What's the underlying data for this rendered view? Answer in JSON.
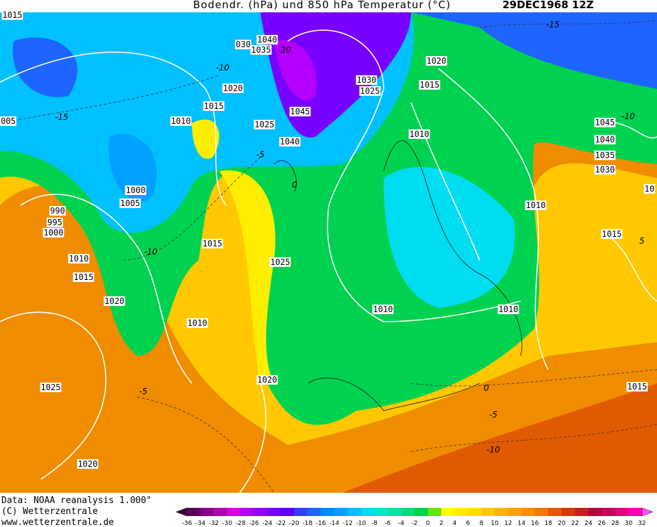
{
  "header": {
    "title": "Bodendr. (hPa) und 850 hPa Temperatur (°C)",
    "date": "29DEC1968 12Z"
  },
  "footer": {
    "source": "Data: NOAA reanalysis 1.000°",
    "copyright": "(C) Wetterzentrale",
    "url": "www.wetterzentrale.de"
  },
  "map": {
    "isobar_labels": [
      "1015",
      "030",
      "1040",
      "1035",
      "1020",
      "1015",
      "1010",
      "1025",
      "1045",
      "1040",
      "1030",
      "1025",
      "1020",
      "1015",
      "1010",
      "005",
      "1000",
      "1005",
      "990",
      "995",
      "1000",
      "1010",
      "1015",
      "1020",
      "1015",
      "1025",
      "1010",
      "1020",
      "1025",
      "1020",
      "1010",
      "1010",
      "1010",
      "1015",
      "1045",
      "1040",
      "1035",
      "1030",
      "1015",
      "10"
    ],
    "isotherm_labels": [
      "-15",
      "-10",
      "-15",
      "-20",
      "-10",
      "-5",
      "0",
      "-5",
      "0",
      "-5",
      "-10",
      "-10",
      "5"
    ]
  },
  "colorbar": {
    "labels": [
      "-36",
      "-34",
      "-32",
      "-30",
      "-28",
      "-26",
      "-24",
      "-22",
      "-20",
      "-18",
      "-16",
      "-14",
      "-12",
      "-10",
      "-8",
      "-6",
      "-4",
      "-2",
      "0",
      "2",
      "4",
      "6",
      "8",
      "10",
      "12",
      "14",
      "16",
      "18",
      "20",
      "22",
      "24",
      "26",
      "28",
      "30",
      "32"
    ],
    "colors": [
      "#3a003a",
      "#5a005a",
      "#8a008a",
      "#b000b0",
      "#e000e0",
      "#b400ff",
      "#9600ff",
      "#7800ff",
      "#5a00ff",
      "#3c3cff",
      "#1e64ff",
      "#0088ff",
      "#00a0ff",
      "#00c0ff",
      "#00dcf0",
      "#00e6c8",
      "#00e6a0",
      "#00dc78",
      "#00d250",
      "#64e600",
      "#ffff00",
      "#ffee00",
      "#ffdc00",
      "#ffc800",
      "#ffb400",
      "#ffa000",
      "#ff8c00",
      "#f07800",
      "#e05a00",
      "#d23c00",
      "#c81e1e",
      "#b4003c",
      "#c8005a",
      "#e6007d",
      "#ff00b4",
      "#ff50ff"
    ]
  }
}
